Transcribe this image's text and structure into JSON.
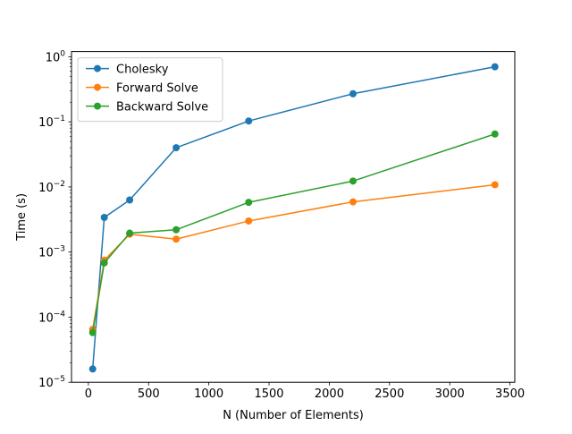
{
  "chart_data": {
    "type": "line",
    "title": "",
    "xlabel": "N (Number of Elements)",
    "ylabel": "Time (s)",
    "yscale": "log",
    "xlim": [
      -140,
      3540
    ],
    "ylim": [
      1e-05,
      1.2
    ],
    "xticks": [
      0,
      500,
      1000,
      1500,
      2000,
      2500,
      3000,
      3500
    ],
    "xtick_labels": [
      "0",
      "500",
      "1000",
      "1500",
      "2000",
      "2500",
      "3000",
      "3500"
    ],
    "yticks": [
      {
        "value": 1e-05,
        "base": "10",
        "exp": "−5"
      },
      {
        "value": 0.0001,
        "base": "10",
        "exp": "−4"
      },
      {
        "value": 0.001,
        "base": "10",
        "exp": "−3"
      },
      {
        "value": 0.01,
        "base": "10",
        "exp": "−2"
      },
      {
        "value": 0.1,
        "base": "10",
        "exp": "−1"
      },
      {
        "value": 1,
        "base": "10",
        "exp": "0"
      }
    ],
    "grid": false,
    "legend_position": "top-left",
    "series": [
      {
        "name": "Cholesky",
        "color": "#1f77b4",
        "marker": "circle",
        "points": [
          [
            36,
            1.6e-05
          ],
          [
            132,
            0.0034
          ],
          [
            343,
            0.0063
          ],
          [
            729,
            0.04
          ],
          [
            1331,
            0.103
          ],
          [
            2197,
            0.27
          ],
          [
            3375,
            0.7
          ]
        ]
      },
      {
        "name": "Forward Solve",
        "color": "#ff7f0e",
        "marker": "circle",
        "points": [
          [
            36,
            6.5e-05
          ],
          [
            132,
            0.00075
          ],
          [
            343,
            0.00188
          ],
          [
            729,
            0.00158
          ],
          [
            1331,
            0.003
          ],
          [
            2197,
            0.0059
          ],
          [
            3375,
            0.0108
          ]
        ]
      },
      {
        "name": "Backward Solve",
        "color": "#2ca02c",
        "marker": "circle",
        "points": [
          [
            36,
            5.8e-05
          ],
          [
            132,
            0.00068
          ],
          [
            343,
            0.00195
          ],
          [
            729,
            0.0022
          ],
          [
            1331,
            0.0058
          ],
          [
            2197,
            0.0123
          ],
          [
            3375,
            0.065
          ]
        ]
      }
    ]
  }
}
